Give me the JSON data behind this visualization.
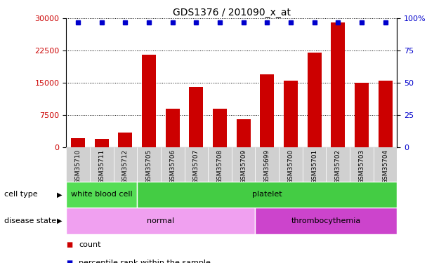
{
  "title": "GDS1376 / 201090_x_at",
  "samples": [
    "GSM35710",
    "GSM35711",
    "GSM35712",
    "GSM35705",
    "GSM35706",
    "GSM35707",
    "GSM35708",
    "GSM35709",
    "GSM35699",
    "GSM35700",
    "GSM35701",
    "GSM35702",
    "GSM35703",
    "GSM35704"
  ],
  "counts": [
    2200,
    2000,
    3500,
    21500,
    9000,
    14000,
    9000,
    6500,
    17000,
    15500,
    22000,
    29000,
    15000,
    15500
  ],
  "percentiles": [
    97,
    97,
    97,
    97,
    97,
    97,
    97,
    97,
    97,
    97,
    97,
    97,
    97,
    97
  ],
  "cell_types": [
    {
      "label": "white blood cell",
      "start": 0,
      "end": 3,
      "color": "#55dd55"
    },
    {
      "label": "platelet",
      "start": 3,
      "end": 14,
      "color": "#44cc44"
    }
  ],
  "disease_states": [
    {
      "label": "normal",
      "start": 0,
      "end": 8,
      "color": "#f0a0f0"
    },
    {
      "label": "thrombocythemia",
      "start": 8,
      "end": 14,
      "color": "#cc44cc"
    }
  ],
  "ylim_left": [
    0,
    30000
  ],
  "ylim_right": [
    0,
    100
  ],
  "yticks_left": [
    0,
    7500,
    15000,
    22500,
    30000
  ],
  "yticks_right": [
    0,
    25,
    50,
    75,
    100
  ],
  "bar_color": "#cc0000",
  "dot_color": "#0000cc",
  "bg_color": "#ffffff",
  "ticklabel_bg": "#d0d0d0",
  "legend_items": [
    {
      "label": "count",
      "color": "#cc0000"
    },
    {
      "label": "percentile rank within the sample",
      "color": "#0000cc"
    }
  ]
}
